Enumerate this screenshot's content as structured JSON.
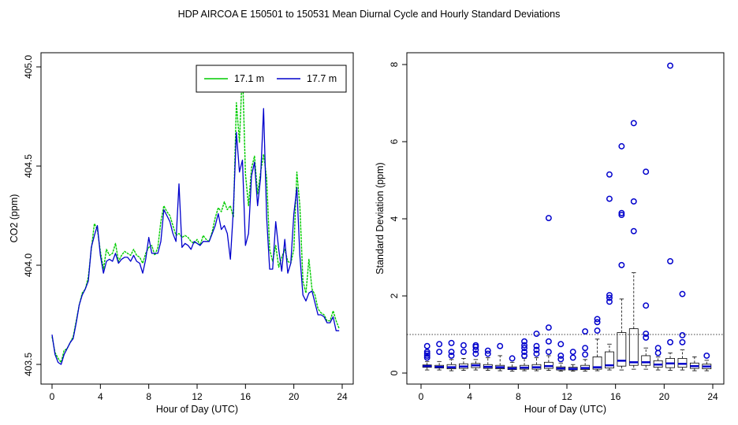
{
  "figure": {
    "title": "HDP   AIRCOA E   150501 to 150531   Mean Diurnal Cycle and Hourly Standard Deviations"
  },
  "colors": {
    "series_green": "#00cc00",
    "series_blue": "#0000cc",
    "box": "#000000",
    "median": "#0000cc",
    "outlier": "#0000cc"
  },
  "chart_data": [
    {
      "type": "line",
      "xlabel": "Hour of Day (UTC)",
      "ylabel": "CO2 (ppm)",
      "xlim": [
        0,
        24
      ],
      "ylim": [
        403.5,
        405.0
      ],
      "xticks": [
        0,
        4,
        8,
        12,
        16,
        20,
        24
      ],
      "yticks": [
        403.5,
        404.0,
        404.5,
        405.0
      ],
      "xtick_labels": [
        "0",
        "4",
        "8",
        "12",
        "16",
        "20",
        "24"
      ],
      "ytick_labels": [
        "403.5",
        "404.0",
        "404.5",
        "405.0"
      ],
      "legend_position": "top-right",
      "grid": false,
      "series": [
        {
          "name": "17.1 m",
          "color": "#00cc00",
          "x": [
            0,
            0.25,
            0.5,
            0.75,
            1,
            1.25,
            1.5,
            1.75,
            2,
            2.25,
            2.5,
            2.75,
            3,
            3.25,
            3.5,
            3.75,
            4,
            4.25,
            4.5,
            4.75,
            5,
            5.25,
            5.5,
            5.75,
            6,
            6.25,
            6.5,
            6.75,
            7,
            7.25,
            7.5,
            7.75,
            8,
            8.25,
            8.5,
            8.75,
            9,
            9.25,
            9.5,
            9.75,
            10,
            10.25,
            10.5,
            10.75,
            11,
            11.25,
            11.5,
            11.75,
            12,
            12.25,
            12.5,
            12.75,
            13,
            13.25,
            13.5,
            13.75,
            14,
            14.25,
            14.5,
            14.75,
            15,
            15.25,
            15.5,
            15.75,
            16,
            16.25,
            16.5,
            16.75,
            17,
            17.25,
            17.5,
            17.75,
            18,
            18.25,
            18.5,
            18.75,
            19,
            19.25,
            19.5,
            19.75,
            20,
            20.25,
            20.5,
            20.75,
            21,
            21.25,
            21.5,
            21.75,
            22,
            22.25,
            22.5,
            22.75,
            23,
            23.25,
            23.5,
            23.75
          ],
          "values": [
            403.64,
            403.56,
            403.53,
            403.51,
            403.57,
            403.58,
            403.61,
            403.64,
            403.72,
            403.8,
            403.86,
            403.88,
            403.94,
            404.08,
            404.21,
            404.18,
            404.07,
            403.98,
            404.08,
            404.05,
            404.06,
            404.11,
            404.02,
            404.05,
            404.07,
            404.06,
            404.05,
            404.08,
            404.05,
            404.04,
            404.01,
            404.06,
            404.09,
            404.1,
            404.05,
            404.09,
            404.22,
            404.3,
            404.27,
            404.25,
            404.2,
            404.15,
            404.16,
            404.14,
            404.15,
            404.14,
            404.12,
            404.11,
            404.13,
            404.1,
            404.15,
            404.13,
            404.12,
            404.17,
            404.24,
            404.29,
            404.27,
            404.32,
            404.28,
            404.3,
            404.24,
            404.82,
            404.62,
            405.0,
            404.46,
            404.3,
            404.49,
            404.55,
            404.36,
            404.47,
            404.56,
            404.44,
            404.08,
            404.02,
            404.1,
            403.99,
            404.04,
            404.08,
            404.02,
            404.01,
            404.08,
            404.47,
            404.3,
            403.92,
            403.86,
            404.03,
            403.88,
            403.85,
            403.78,
            403.76,
            403.75,
            403.72,
            403.72,
            403.77,
            403.72,
            403.68
          ]
        },
        {
          "name": "17.7 m",
          "color": "#0000cc",
          "x": [
            0,
            0.25,
            0.5,
            0.75,
            1,
            1.25,
            1.5,
            1.75,
            2,
            2.25,
            2.5,
            2.75,
            3,
            3.25,
            3.5,
            3.75,
            4,
            4.25,
            4.5,
            4.75,
            5,
            5.25,
            5.5,
            5.75,
            6,
            6.25,
            6.5,
            6.75,
            7,
            7.25,
            7.5,
            7.75,
            8,
            8.25,
            8.5,
            8.75,
            9,
            9.25,
            9.5,
            9.75,
            10,
            10.25,
            10.5,
            10.75,
            11,
            11.25,
            11.5,
            11.75,
            12,
            12.25,
            12.5,
            12.75,
            13,
            13.25,
            13.5,
            13.75,
            14,
            14.25,
            14.5,
            14.75,
            15,
            15.25,
            15.5,
            15.75,
            16,
            16.25,
            16.5,
            16.75,
            17,
            17.25,
            17.5,
            17.75,
            18,
            18.25,
            18.5,
            18.75,
            19,
            19.25,
            19.5,
            19.75,
            20,
            20.25,
            20.5,
            20.75,
            21,
            21.25,
            21.5,
            21.75,
            22,
            22.25,
            22.5,
            22.75,
            23,
            23.25,
            23.5,
            23.75
          ],
          "values": [
            403.65,
            403.55,
            403.51,
            403.5,
            403.55,
            403.58,
            403.61,
            403.63,
            403.71,
            403.8,
            403.85,
            403.88,
            403.92,
            404.09,
            404.15,
            404.2,
            404.05,
            403.96,
            404.02,
            404.03,
            404.02,
            404.06,
            404.01,
            404.03,
            404.04,
            404.04,
            404.02,
            404.05,
            404.02,
            404.01,
            403.96,
            404.03,
            404.14,
            404.06,
            404.06,
            404.06,
            404.12,
            404.28,
            404.25,
            404.22,
            404.16,
            404.12,
            404.41,
            404.09,
            404.11,
            404.1,
            404.08,
            404.12,
            404.11,
            404.1,
            404.12,
            404.12,
            404.12,
            404.16,
            404.2,
            404.26,
            404.18,
            404.2,
            404.16,
            404.03,
            404.28,
            404.67,
            404.47,
            404.53,
            404.1,
            404.16,
            404.45,
            404.52,
            404.3,
            404.44,
            404.79,
            404.24,
            403.98,
            403.98,
            404.22,
            404.08,
            403.97,
            404.13,
            403.96,
            404.01,
            404.26,
            404.39,
            404.05,
            403.85,
            403.82,
            403.86,
            403.87,
            403.81,
            403.75,
            403.75,
            403.74,
            403.71,
            403.71,
            403.74,
            403.67,
            403.67
          ]
        }
      ]
    },
    {
      "type": "box",
      "xlabel": "Hour of Day (UTC)",
      "ylabel": "Standard Deviation (ppm)",
      "xlim": [
        0,
        24
      ],
      "ylim": [
        0,
        8
      ],
      "xticks": [
        0,
        4,
        8,
        12,
        16,
        20,
        24
      ],
      "yticks": [
        0,
        2,
        4,
        6,
        8
      ],
      "xtick_labels": [
        "0",
        "4",
        "8",
        "12",
        "16",
        "20",
        "24"
      ],
      "ytick_labels": [
        "0",
        "2",
        "4",
        "6",
        "8"
      ],
      "reference_line": 1.0,
      "grid": false,
      "boxes": [
        {
          "x": 0.5,
          "wlo": 0.08,
          "q1": 0.15,
          "med": 0.18,
          "q3": 0.21,
          "whi": 0.3,
          "out": [
            0.4,
            0.45,
            0.5,
            0.55,
            0.7
          ]
        },
        {
          "x": 1.5,
          "wlo": 0.08,
          "q1": 0.13,
          "med": 0.16,
          "q3": 0.2,
          "whi": 0.3,
          "out": [
            0.55,
            0.75
          ]
        },
        {
          "x": 2.5,
          "wlo": 0.06,
          "q1": 0.11,
          "med": 0.15,
          "q3": 0.22,
          "whi": 0.35,
          "out": [
            0.45,
            0.55,
            0.78
          ]
        },
        {
          "x": 3.5,
          "wlo": 0.07,
          "q1": 0.12,
          "med": 0.17,
          "q3": 0.24,
          "whi": 0.38,
          "out": [
            0.55,
            0.72
          ]
        },
        {
          "x": 4.5,
          "wlo": 0.08,
          "q1": 0.14,
          "med": 0.2,
          "q3": 0.25,
          "whi": 0.35,
          "out": [
            0.5,
            0.6,
            0.68,
            0.72
          ]
        },
        {
          "x": 5.5,
          "wlo": 0.07,
          "q1": 0.12,
          "med": 0.16,
          "q3": 0.22,
          "whi": 0.4,
          "out": [
            0.5,
            0.58
          ]
        },
        {
          "x": 6.5,
          "wlo": 0.06,
          "q1": 0.11,
          "med": 0.15,
          "q3": 0.2,
          "whi": 0.45,
          "out": [
            0.7
          ]
        },
        {
          "x": 7.5,
          "wlo": 0.05,
          "q1": 0.09,
          "med": 0.12,
          "q3": 0.16,
          "whi": 0.28,
          "out": [
            0.38
          ]
        },
        {
          "x": 8.5,
          "wlo": 0.06,
          "q1": 0.1,
          "med": 0.14,
          "q3": 0.2,
          "whi": 0.38,
          "out": [
            0.45,
            0.55,
            0.65,
            0.72,
            0.82
          ]
        },
        {
          "x": 9.5,
          "wlo": 0.06,
          "q1": 0.1,
          "med": 0.15,
          "q3": 0.22,
          "whi": 0.4,
          "out": [
            0.5,
            0.6,
            0.7,
            1.02
          ]
        },
        {
          "x": 10.5,
          "wlo": 0.07,
          "q1": 0.12,
          "med": 0.18,
          "q3": 0.28,
          "whi": 0.45,
          "out": [
            0.55,
            0.82,
            1.18,
            4.02
          ]
        },
        {
          "x": 11.5,
          "wlo": 0.05,
          "q1": 0.08,
          "med": 0.12,
          "q3": 0.16,
          "whi": 0.26,
          "out": [
            0.36,
            0.45,
            0.75
          ]
        },
        {
          "x": 12.5,
          "wlo": 0.05,
          "q1": 0.08,
          "med": 0.11,
          "q3": 0.15,
          "whi": 0.22,
          "out": [
            0.4,
            0.55
          ]
        },
        {
          "x": 13.5,
          "wlo": 0.05,
          "q1": 0.09,
          "med": 0.13,
          "q3": 0.2,
          "whi": 0.35,
          "out": [
            0.48,
            0.65,
            1.08
          ]
        },
        {
          "x": 14.5,
          "wlo": 0.06,
          "q1": 0.1,
          "med": 0.15,
          "q3": 0.42,
          "whi": 0.88,
          "out": [
            1.1,
            1.32,
            1.4
          ]
        },
        {
          "x": 15.5,
          "wlo": 0.08,
          "q1": 0.13,
          "med": 0.2,
          "q3": 0.55,
          "whi": 0.75,
          "out": [
            1.85,
            1.95,
            2.02,
            4.52,
            5.15
          ]
        },
        {
          "x": 16.5,
          "wlo": 0.08,
          "q1": 0.18,
          "med": 0.32,
          "q3": 1.05,
          "whi": 1.92,
          "out": [
            2.8,
            4.1,
            4.15,
            5.88
          ]
        },
        {
          "x": 17.5,
          "wlo": 0.1,
          "q1": 0.2,
          "med": 0.28,
          "q3": 1.15,
          "whi": 2.6,
          "out": [
            3.68,
            4.45,
            6.48
          ]
        },
        {
          "x": 18.5,
          "wlo": 0.1,
          "q1": 0.2,
          "med": 0.28,
          "q3": 0.45,
          "whi": 0.65,
          "out": [
            0.92,
            1.02,
            1.75,
            5.22
          ]
        },
        {
          "x": 19.5,
          "wlo": 0.08,
          "q1": 0.15,
          "med": 0.22,
          "q3": 0.32,
          "whi": 0.42,
          "out": [
            0.52,
            0.65
          ]
        },
        {
          "x": 20.5,
          "wlo": 0.07,
          "q1": 0.14,
          "med": 0.25,
          "q3": 0.38,
          "whi": 0.52,
          "out": [
            0.8,
            2.9,
            7.97
          ]
        },
        {
          "x": 21.5,
          "wlo": 0.08,
          "q1": 0.15,
          "med": 0.24,
          "q3": 0.38,
          "whi": 0.6,
          "out": [
            0.8,
            0.98,
            2.05
          ]
        },
        {
          "x": 22.5,
          "wlo": 0.06,
          "q1": 0.12,
          "med": 0.18,
          "q3": 0.26,
          "whi": 0.42,
          "out": []
        },
        {
          "x": 23.5,
          "wlo": 0.06,
          "q1": 0.11,
          "med": 0.17,
          "q3": 0.23,
          "whi": 0.33,
          "out": [
            0.45
          ]
        }
      ]
    }
  ]
}
